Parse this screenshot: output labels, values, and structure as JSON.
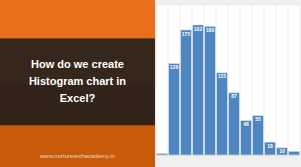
{
  "chart_data": {
    "type": "bar",
    "title": "How do we create\nHistogram chart in\nExcel?",
    "annotations": [
      "www.nurturetechacademy.in"
    ],
    "categories": [
      null,
      null,
      null,
      null,
      null,
      null,
      null,
      null,
      null,
      null,
      null,
      null
    ],
    "values": [
      2,
      128,
      175,
      182,
      180,
      115,
      87,
      48,
      55,
      18,
      10,
      5
    ],
    "value_labels": [
      null,
      "128",
      "175",
      "182",
      "180",
      "115",
      "87",
      "48",
      "55",
      "18",
      "10",
      null
    ],
    "data_labels": true,
    "color": "#4d86c0",
    "ylim": [
      0,
      210
    ],
    "yticks": [],
    "tick_labels": false,
    "grid": true
  }
}
